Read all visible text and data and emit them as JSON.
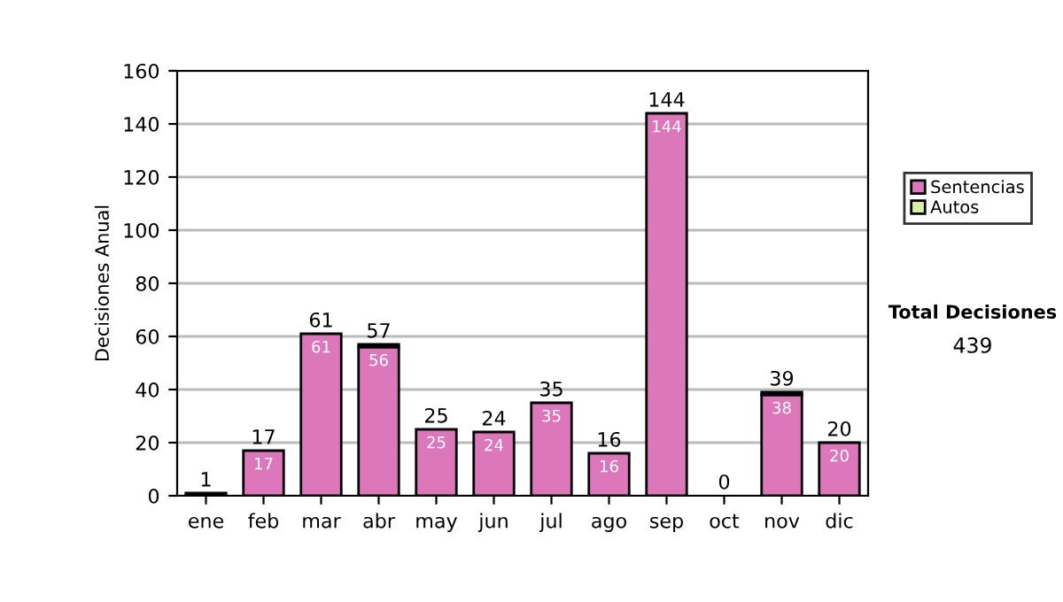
{
  "chart_data": {
    "type": "bar",
    "stacked": true,
    "ylabel": "Decisiones Anual",
    "categories": [
      "ene",
      "feb",
      "mar",
      "abr",
      "may",
      "jun",
      "jul",
      "ago",
      "sep",
      "oct",
      "nov",
      "dic"
    ],
    "series": [
      {
        "name": "Sentencias",
        "color": "#dd77bb",
        "values": [
          0,
          17,
          61,
          56,
          25,
          24,
          35,
          16,
          144,
          0,
          38,
          20
        ],
        "value_labels": [
          null,
          "17",
          "61",
          "56",
          "25",
          "24",
          "35",
          "16",
          "144",
          null,
          "38",
          "20"
        ]
      },
      {
        "name": "Autos",
        "color": "#d9f0a3",
        "values": [
          1,
          0,
          0,
          1,
          0,
          0,
          0,
          0,
          0,
          0,
          1,
          0
        ]
      }
    ],
    "totals": [
      "1",
      "17",
      "61",
      "57",
      "25",
      "24",
      "35",
      "16",
      "144",
      "0",
      "39",
      "20"
    ],
    "ylim": [
      0,
      160
    ],
    "yticks": [
      0,
      20,
      40,
      60,
      80,
      100,
      120,
      140,
      160
    ],
    "grid": "y",
    "legend": "right",
    "annotations": [
      "Total Decisiones",
      "439"
    ]
  }
}
